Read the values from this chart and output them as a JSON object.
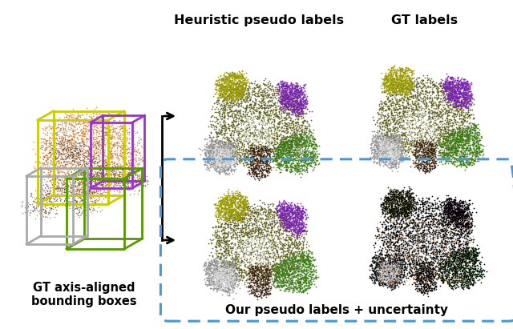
{
  "title_heuristic": "Heuristic pseudo labels",
  "title_gt": "GT labels",
  "label_bottom_left": "GT axis-aligned\nbounding boxes",
  "label_bottom_box": "Our pseudo labels + uncertainty",
  "bg_color": "#ffffff",
  "arrow_color": "#000000",
  "dashed_box_color": "#4499dd",
  "title_fontsize": 11.5,
  "label_fontsize": 10.5,
  "bold_fontsize": 11,
  "fig_width": 6.4,
  "fig_height": 4.11,
  "left_img_colors": {
    "box_yellow": "#cccc00",
    "box_purple": "#9933cc",
    "box_green": "#559900",
    "box_gray": "#aaaaaa",
    "box_brown": "#8B4513",
    "points_orange": "#c8813c",
    "points_dark": "#5c3a1e",
    "points_white": "#ffffff"
  },
  "scene_colors": {
    "table_top": "#5a5a18",
    "table_highlight": "#ffffff",
    "chair_yellow": "#999900",
    "chair_purple": "#7722aa",
    "chair_green": "#3a7a11",
    "chair_gray": "#909090",
    "chair_white": "#cccccc",
    "chair_brown_dark": "#3a2010",
    "chair_legs": "#3a2010"
  }
}
